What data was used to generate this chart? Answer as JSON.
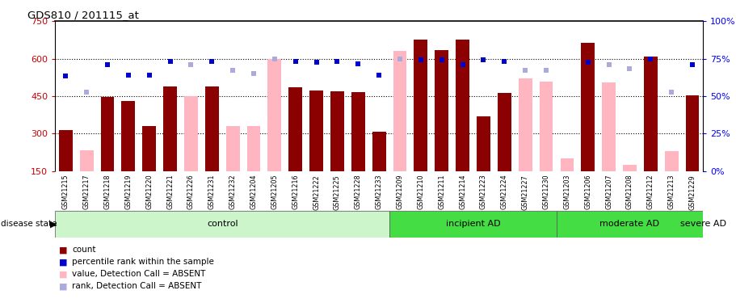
{
  "title": "GDS810 / 201115_at",
  "samples": [
    "GSM21215",
    "GSM21217",
    "GSM21218",
    "GSM21219",
    "GSM21220",
    "GSM21221",
    "GSM21226",
    "GSM21231",
    "GSM21232",
    "GSM21204",
    "GSM21205",
    "GSM21216",
    "GSM21222",
    "GSM21225",
    "GSM21228",
    "GSM21233",
    "GSM21209",
    "GSM21210",
    "GSM21211",
    "GSM21214",
    "GSM21223",
    "GSM21224",
    "GSM21227",
    "GSM21230",
    "GSM21203",
    "GSM21206",
    "GSM21207",
    "GSM21208",
    "GSM21212",
    "GSM21213",
    "GSM21229"
  ],
  "count_values": [
    315,
    null,
    447,
    430,
    330,
    490,
    null,
    490,
    null,
    null,
    null,
    487,
    473,
    469,
    467,
    307,
    null,
    678,
    635,
    678,
    370,
    463,
    null,
    null,
    null,
    662,
    null,
    null,
    607,
    null,
    453
  ],
  "absent_count_values": [
    null,
    235,
    null,
    null,
    null,
    null,
    450,
    null,
    330,
    330,
    600,
    null,
    null,
    null,
    null,
    null,
    630,
    null,
    null,
    null,
    null,
    null,
    520,
    510,
    200,
    null,
    505,
    175,
    null,
    230,
    null
  ],
  "rank_present_y": [
    530,
    null,
    575,
    535,
    535,
    590,
    null,
    590,
    null,
    null,
    null,
    590,
    585,
    590,
    580,
    535,
    null,
    595,
    595,
    575,
    595,
    590,
    null,
    null,
    null,
    585,
    null,
    null,
    600,
    null,
    575
  ],
  "rank_absent_y": [
    null,
    465,
    null,
    null,
    null,
    null,
    575,
    null,
    555,
    540,
    600,
    null,
    null,
    null,
    null,
    null,
    600,
    null,
    null,
    null,
    null,
    null,
    555,
    555,
    null,
    null,
    575,
    560,
    null,
    465,
    null
  ],
  "groups": [
    {
      "name": "control",
      "start": 0,
      "end": 16
    },
    {
      "name": "incipient AD",
      "start": 16,
      "end": 24
    },
    {
      "name": "moderate AD",
      "start": 24,
      "end": 31
    },
    {
      "name": "severe AD",
      "start": 31,
      "end": 31
    }
  ],
  "group_colors": [
    "#d4f5d4",
    "#55ee44",
    "#44cc33",
    "#33bb22"
  ],
  "ylim": [
    150,
    750
  ],
  "yticks": [
    150,
    300,
    450,
    600,
    750
  ],
  "y2ticks": [
    0,
    25,
    50,
    75,
    100
  ],
  "hlines": [
    300,
    450,
    600
  ],
  "bar_color_present": "#8b0000",
  "bar_color_absent": "#ffb6c1",
  "rank_color_present": "#0000cc",
  "rank_color_absent": "#aaaadd"
}
